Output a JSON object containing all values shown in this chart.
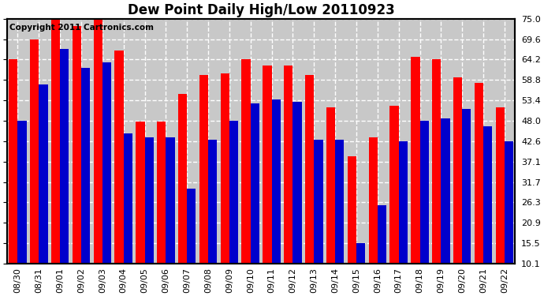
{
  "title": "Dew Point Daily High/Low 20110923",
  "copyright": "Copyright 2011 Cartronics.com",
  "labels": [
    "08/30",
    "08/31",
    "09/01",
    "09/02",
    "09/03",
    "09/04",
    "09/05",
    "09/06",
    "09/07",
    "09/08",
    "09/09",
    "09/10",
    "09/11",
    "09/12",
    "09/13",
    "09/14",
    "09/15",
    "09/16",
    "09/17",
    "09/18",
    "09/19",
    "09/20",
    "09/21",
    "09/22"
  ],
  "highs": [
    64.2,
    69.6,
    75.0,
    73.0,
    75.0,
    66.5,
    47.8,
    47.8,
    55.0,
    60.0,
    60.5,
    64.2,
    62.5,
    62.5,
    60.0,
    51.5,
    38.5,
    43.5,
    52.0,
    65.0,
    64.2,
    59.5,
    58.0,
    51.5
  ],
  "lows": [
    48.0,
    57.5,
    67.0,
    62.0,
    63.5,
    44.5,
    43.5,
    43.5,
    30.0,
    43.0,
    48.0,
    52.5,
    53.5,
    53.0,
    43.0,
    43.0,
    15.5,
    25.5,
    42.5,
    48.0,
    48.5,
    51.0,
    46.5,
    42.5
  ],
  "high_color": "#ff0000",
  "low_color": "#0000cc",
  "bg_color": "#ffffff",
  "plot_bg_color": "#c8c8c8",
  "grid_color": "#ffffff",
  "ylim_min": 10.1,
  "ylim_max": 75.0,
  "yticks": [
    10.1,
    15.5,
    20.9,
    26.3,
    31.7,
    37.1,
    42.6,
    48.0,
    53.4,
    58.8,
    64.2,
    69.6,
    75.0
  ],
  "bar_width": 0.42,
  "title_fontsize": 12,
  "tick_fontsize": 8,
  "copyright_fontsize": 7.5
}
